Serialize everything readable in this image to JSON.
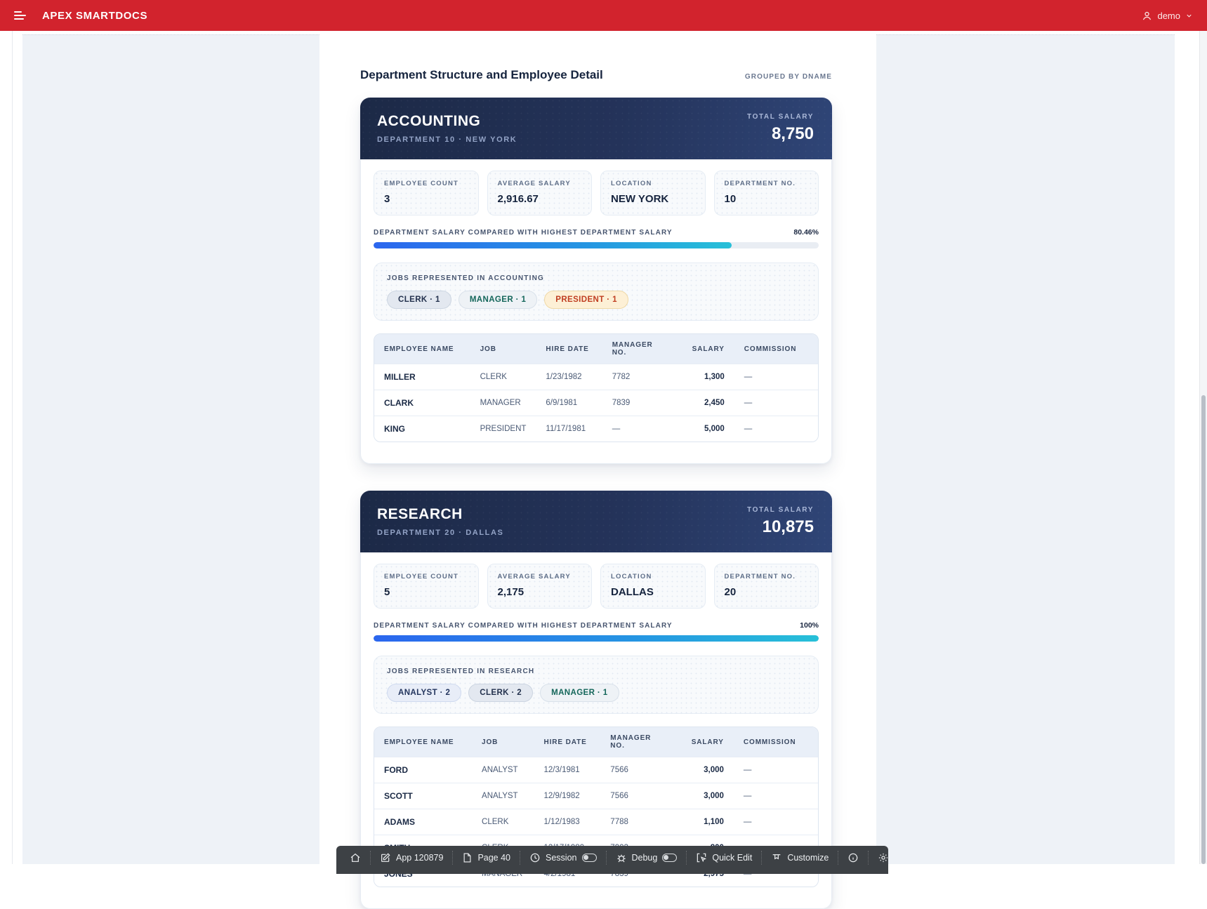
{
  "appbar": {
    "title": "APEX SMARTDOCS",
    "user_label": "demo"
  },
  "page": {
    "title": "Department Structure and Employee Detail",
    "grouping_note": "GROUPED BY DNAME"
  },
  "shared": {
    "total_salary_label": "TOTAL SALARY",
    "stat_labels": {
      "employee_count": "EMPLOYEE COUNT",
      "average_salary": "AVERAGE SALARY",
      "location": "LOCATION",
      "department_no": "DEPARTMENT NO."
    },
    "salary_compare_label": "DEPARTMENT SALARY COMPARED WITH HIGHEST DEPARTMENT SALARY",
    "table_headers": [
      "EMPLOYEE NAME",
      "JOB",
      "HIRE DATE",
      "MANAGER NO.",
      "SALARY",
      "COMMISSION"
    ]
  },
  "departments": [
    {
      "name": "ACCOUNTING",
      "meta": "DEPARTMENT 10 · NEW YORK",
      "total_salary": "8,750",
      "stats": {
        "employee_count": "3",
        "average_salary": "2,916.67",
        "location": "NEW YORK",
        "department_no": "10"
      },
      "salary_percent": 80.46,
      "salary_percent_text": "80.46%",
      "jobs_title": "JOBS REPRESENTED IN ACCOUNTING",
      "jobs": [
        {
          "label": "CLERK · 1"
        },
        {
          "label": "MANAGER · 1"
        },
        {
          "label": "PRESIDENT · 1"
        }
      ],
      "employees": [
        {
          "name": "MILLER",
          "job": "CLERK",
          "hire_date": "1/23/1982",
          "manager_no": "7782",
          "salary": "1,300",
          "commission": "—"
        },
        {
          "name": "CLARK",
          "job": "MANAGER",
          "hire_date": "6/9/1981",
          "manager_no": "7839",
          "salary": "2,450",
          "commission": "—"
        },
        {
          "name": "KING",
          "job": "PRESIDENT",
          "hire_date": "11/17/1981",
          "manager_no": "—",
          "salary": "5,000",
          "commission": "—"
        }
      ]
    },
    {
      "name": "RESEARCH",
      "meta": "DEPARTMENT 20 · DALLAS",
      "total_salary": "10,875",
      "stats": {
        "employee_count": "5",
        "average_salary": "2,175",
        "location": "DALLAS",
        "department_no": "20"
      },
      "salary_percent": 100,
      "salary_percent_text": "100%",
      "jobs_title": "JOBS REPRESENTED IN RESEARCH",
      "jobs": [
        {
          "label": "ANALYST · 2"
        },
        {
          "label": "CLERK · 2"
        },
        {
          "label": "MANAGER · 1"
        }
      ],
      "employees": [
        {
          "name": "FORD",
          "job": "ANALYST",
          "hire_date": "12/3/1981",
          "manager_no": "7566",
          "salary": "3,000",
          "commission": "—"
        },
        {
          "name": "SCOTT",
          "job": "ANALYST",
          "hire_date": "12/9/1982",
          "manager_no": "7566",
          "salary": "3,000",
          "commission": "—"
        },
        {
          "name": "ADAMS",
          "job": "CLERK",
          "hire_date": "1/12/1983",
          "manager_no": "7788",
          "salary": "1,100",
          "commission": "—"
        },
        {
          "name": "SMITH",
          "job": "CLERK",
          "hire_date": "12/17/1980",
          "manager_no": "7902",
          "salary": "800",
          "commission": "—"
        },
        {
          "name": "JONES",
          "job": "MANAGER",
          "hire_date": "4/2/1981",
          "manager_no": "7839",
          "salary": "2,975",
          "commission": "—"
        }
      ]
    }
  ],
  "dev_toolbar": {
    "app": "App 120879",
    "page": "Page 40",
    "session": "Session",
    "debug": "Debug",
    "quick_edit": "Quick Edit",
    "customize": "Customize"
  },
  "colors": {
    "header_red": "#d2232d",
    "card_navy_start": "#1c2946",
    "card_navy_end": "#2f4577",
    "progress_start": "#2b66ee",
    "progress_end": "#27c0d8",
    "chip_amber_text": "#c03e22",
    "chip_teal_text": "#15675b"
  }
}
